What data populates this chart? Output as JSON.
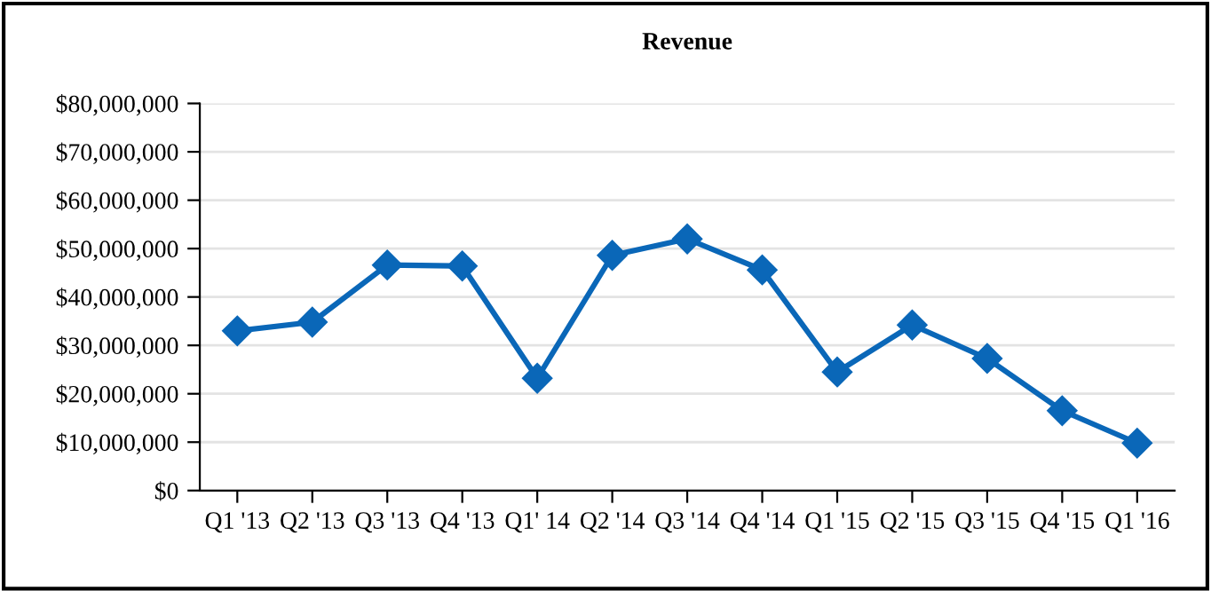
{
  "chart_data": {
    "type": "line",
    "title": "Revenue",
    "categories": [
      "Q1 '13",
      "Q2 '13",
      "Q3 '13",
      "Q4 '13",
      "Q1' 14",
      "Q2 '14",
      "Q3 '14",
      "Q4 '14",
      "Q1 '15",
      "Q2 '15",
      "Q3 '15",
      "Q4 '15",
      "Q1 '16"
    ],
    "series": [
      {
        "color": "#0a67b8",
        "values": [
          33000000,
          34800000,
          46600000,
          46400000,
          23200000,
          48600000,
          52000000,
          45600000,
          24500000,
          34200000,
          27300000,
          16500000,
          9800000
        ]
      }
    ],
    "ylim": [
      0,
      80000000
    ],
    "yticks": [
      {
        "value": 0,
        "label": "$0"
      },
      {
        "value": 10000000,
        "label": "$10,000,000"
      },
      {
        "value": 20000000,
        "label": "$20,000,000"
      },
      {
        "value": 30000000,
        "label": "$30,000,000"
      },
      {
        "value": 40000000,
        "label": "$40,000,000"
      },
      {
        "value": 50000000,
        "label": "$50,000,000"
      },
      {
        "value": 60000000,
        "label": "$60,000,000"
      },
      {
        "value": 70000000,
        "label": "$70,000,000"
      },
      {
        "value": 80000000,
        "label": "$80,000,000"
      }
    ],
    "grid": "y",
    "marker": "diamond",
    "line_style": "solid"
  }
}
